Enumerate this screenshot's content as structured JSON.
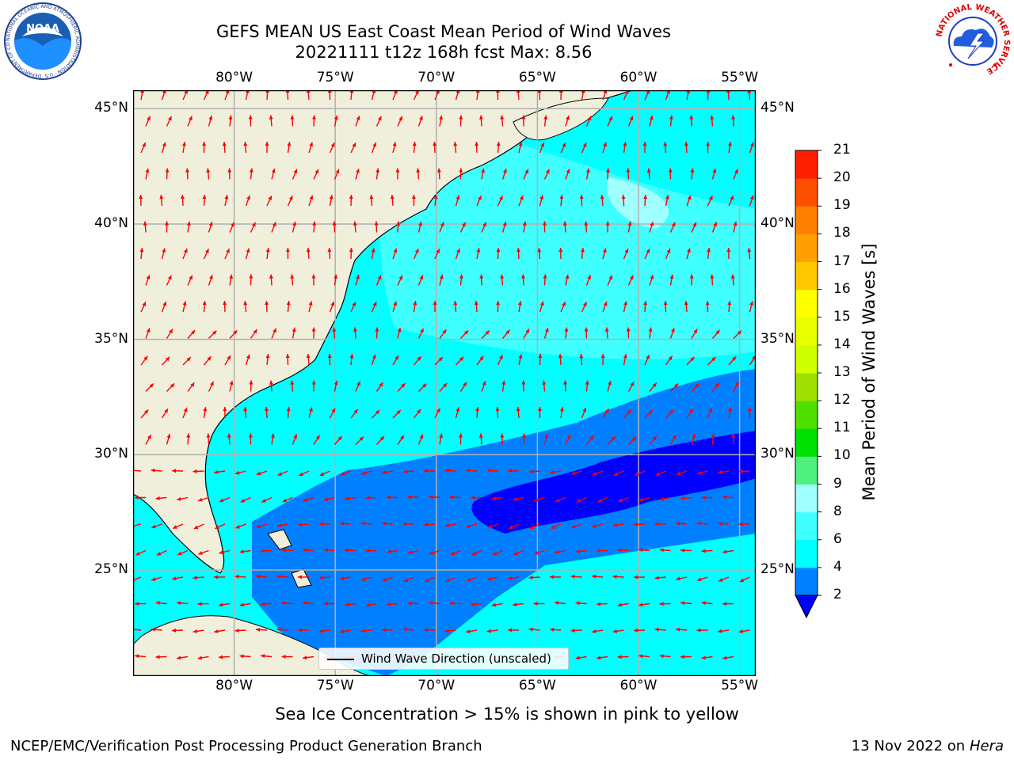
{
  "title": {
    "line1": "GEFS MEAN US East Coast Mean Period of Wind Waves",
    "line2": "20221111 t12z 168h fcst   Max: 8.56"
  },
  "map": {
    "lon_range": [
      -85,
      -54.2
    ],
    "lat_range": [
      20.4,
      45.8
    ],
    "lon_ticks": [
      {
        "value": -80,
        "label": "80°W"
      },
      {
        "value": -75,
        "label": "75°W"
      },
      {
        "value": -70,
        "label": "70°W"
      },
      {
        "value": -65,
        "label": "65°W"
      },
      {
        "value": -60,
        "label": "60°W"
      },
      {
        "value": -55,
        "label": "55°W"
      }
    ],
    "lat_ticks": [
      {
        "value": 45,
        "label": "45°N"
      },
      {
        "value": 40,
        "label": "40°N"
      },
      {
        "value": 35,
        "label": "35°N"
      },
      {
        "value": 30,
        "label": "30°N"
      },
      {
        "value": 25,
        "label": "25°N"
      }
    ],
    "colors": {
      "land": "#efefdc",
      "coast": "#000000",
      "grid": "#b0b0b0",
      "arrow": "#ff0000",
      "band_2_4": "#0080ff",
      "band_4_6": "#00ffff",
      "band_6_8": "#40ffff",
      "band_8_9": "#a0ffff",
      "band_below_2": "#0000ff"
    }
  },
  "legend": {
    "label": "Wind Wave Direction (unscaled)"
  },
  "colorbar": {
    "title": "Mean Period of Wind Waves [s]",
    "ticks": [
      "2",
      "4",
      "6",
      "8",
      "9",
      "10",
      "11",
      "12",
      "13",
      "14",
      "15",
      "16",
      "17",
      "18",
      "19",
      "20",
      "21"
    ],
    "levels": [
      2,
      4,
      6,
      8,
      9,
      10,
      11,
      12,
      13,
      14,
      15,
      16,
      17,
      18,
      19,
      20,
      21
    ],
    "colors": [
      "#0080ff",
      "#00ffff",
      "#40ffff",
      "#a0ffff",
      "#50f080",
      "#00e000",
      "#50e000",
      "#a0e000",
      "#d0ff00",
      "#e8ff00",
      "#ffff00",
      "#ffc800",
      "#ffa000",
      "#ff8000",
      "#ff5000",
      "#ff2000"
    ],
    "extend_color": "#0000ff"
  },
  "notes": {
    "ice": "Sea Ice Concentration > 15% is shown in pink to yellow"
  },
  "footer": {
    "left": "NCEP/EMC/Verification Post Processing Product Generation Branch",
    "right_date": "13 Nov 2022 on",
    "right_host": "Hera"
  },
  "logos": {
    "noaa": {
      "text": "NOAA",
      "ring": "NATIONAL OCEANIC AND ATMOSPHERIC ADMINISTRATION · U.S. DEPARTMENT OF COMMERCE"
    },
    "nws": {
      "ring": "NATIONAL WEATHER SERVICE"
    }
  }
}
